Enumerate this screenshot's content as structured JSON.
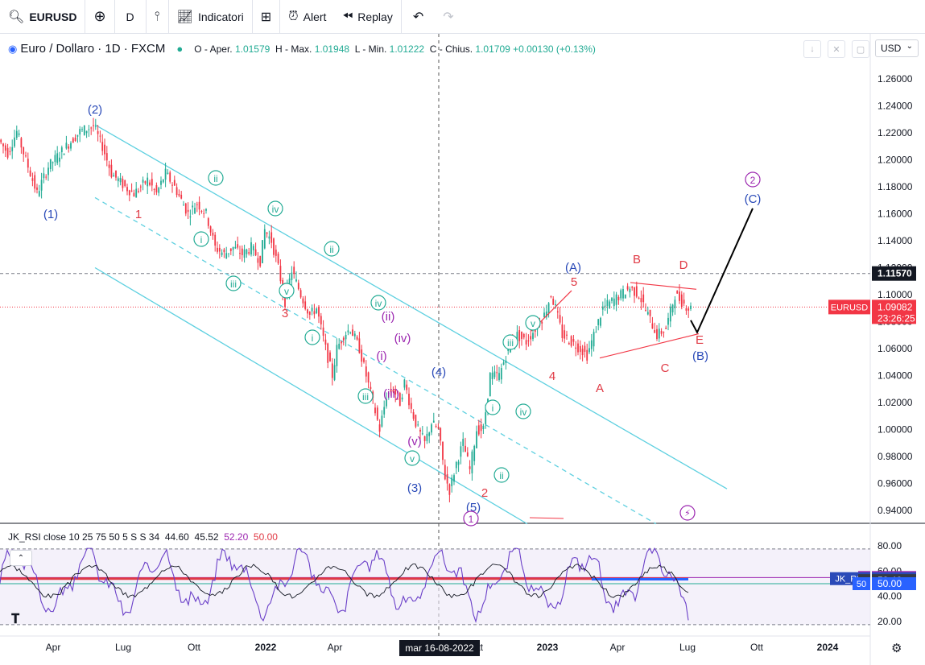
{
  "toolbar": {
    "symbol": "EURUSD",
    "interval": "D",
    "indicators_label": "Indicatori",
    "alert_label": "Alert",
    "replay_label": "Replay"
  },
  "legend": {
    "title": "Euro / Dollaro · 1D · FXCM",
    "o_label": "O - Aper.",
    "o_val": "1.01579",
    "h_label": "H - Max.",
    "h_val": "1.01948",
    "l_label": "L - Min.",
    "l_val": "1.01222",
    "c_label": "C - Chius.",
    "c_val": "1.01709",
    "change": "+0.00130 (+0.13%)"
  },
  "currency": "USD",
  "colors": {
    "up": "#22ab94",
    "down": "#f23645",
    "channel": "#5ed0e0",
    "blue": "#2962ff",
    "wave_red": "#e03a45",
    "wave_blue": "#2a4ab8",
    "wave_green": "#22ab94",
    "wave_purple": "#9c27b0"
  },
  "chart_data": {
    "type": "candlestick",
    "symbol": "EURUSD",
    "timeframe": "1D",
    "ylim": [
      0.93,
      1.27
    ],
    "y_ticks": [
      "1.26000",
      "1.24000",
      "1.22000",
      "1.20000",
      "1.18000",
      "1.16000",
      "1.14000",
      "1.12000",
      "1.10000",
      "1.08000",
      "1.06000",
      "1.04000",
      "1.02000",
      "1.00000",
      "0.98000",
      "0.96000",
      "0.94000"
    ],
    "x_ticks": [
      "Apr",
      "Lug",
      "Ott",
      "2022",
      "Apr",
      "Lug",
      "Ott",
      "2023",
      "Apr",
      "Lug",
      "Ott",
      "2024"
    ],
    "crosshair_date": "mar 16-08-2022",
    "price_marks": [
      {
        "label": "",
        "value": "1.11570"
      },
      {
        "label": "EURUSD",
        "value": "1.09082",
        "timer": "23:26:25"
      }
    ],
    "price_path": [
      [
        0,
        1.215
      ],
      [
        4,
        1.205
      ],
      [
        8,
        1.221
      ],
      [
        12,
        1.2
      ],
      [
        17,
        1.175
      ],
      [
        22,
        1.195
      ],
      [
        30,
        1.21
      ],
      [
        36,
        1.221
      ],
      [
        42,
        1.225
      ],
      [
        46,
        1.21
      ],
      [
        50,
        1.19
      ],
      [
        56,
        1.18
      ],
      [
        60,
        1.175
      ],
      [
        66,
        1.185
      ],
      [
        70,
        1.175
      ],
      [
        74,
        1.19
      ],
      [
        78,
        1.18
      ],
      [
        84,
        1.16
      ],
      [
        88,
        1.168
      ],
      [
        92,
        1.16
      ],
      [
        96,
        1.135
      ],
      [
        100,
        1.13
      ],
      [
        104,
        1.135
      ],
      [
        108,
        1.13
      ],
      [
        112,
        1.135
      ],
      [
        116,
        1.125
      ],
      [
        118,
        1.148
      ],
      [
        121,
        1.14
      ],
      [
        124,
        1.12
      ],
      [
        127,
        1.095
      ],
      [
        130,
        1.118
      ],
      [
        134,
        1.1
      ],
      [
        138,
        1.085
      ],
      [
        141,
        1.09
      ],
      [
        145,
        1.06
      ],
      [
        148,
        1.04
      ],
      [
        150,
        1.06
      ],
      [
        153,
        1.07
      ],
      [
        156,
        1.075
      ],
      [
        160,
        1.06
      ],
      [
        163,
        1.04
      ],
      [
        166,
        1.02
      ],
      [
        169,
        1.0
      ],
      [
        172,
        1.025
      ],
      [
        175,
        1.03
      ],
      [
        178,
        1.02
      ],
      [
        180,
        1.035
      ],
      [
        183,
        1.015
      ],
      [
        186,
        1.0
      ],
      [
        189,
        0.99
      ],
      [
        192,
        1.005
      ],
      [
        195,
        1.0
      ],
      [
        198,
        0.965
      ],
      [
        200,
        0.955
      ],
      [
        203,
        0.975
      ],
      [
        206,
        0.99
      ],
      [
        209,
        0.97
      ],
      [
        212,
        1.0
      ],
      [
        215,
        1.0
      ],
      [
        218,
        1.04
      ],
      [
        222,
        1.04
      ],
      [
        226,
        1.06
      ],
      [
        230,
        1.07
      ],
      [
        234,
        1.065
      ],
      [
        238,
        1.075
      ],
      [
        242,
        1.085
      ],
      [
        245,
        1.1
      ],
      [
        247,
        1.09
      ],
      [
        250,
        1.07
      ],
      [
        254,
        1.065
      ],
      [
        258,
        1.06
      ],
      [
        261,
        1.055
      ],
      [
        264,
        1.07
      ],
      [
        268,
        1.09
      ],
      [
        272,
        1.095
      ],
      [
        276,
        1.1
      ],
      [
        280,
        1.105
      ],
      [
        284,
        1.1
      ],
      [
        288,
        1.085
      ],
      [
        292,
        1.07
      ],
      [
        296,
        1.075
      ],
      [
        300,
        1.1
      ],
      [
        303,
        1.095
      ],
      [
        306,
        1.09
      ]
    ],
    "annotations": [
      {
        "text": "(1)",
        "color": "blue"
      },
      {
        "text": "(2)",
        "color": "blue"
      },
      {
        "text": "(3)",
        "color": "blue"
      },
      {
        "text": "(4)",
        "color": "blue"
      },
      {
        "text": "(5)",
        "color": "blue"
      },
      {
        "text": "(A)",
        "color": "blue"
      },
      {
        "text": "(B)",
        "color": "blue"
      },
      {
        "text": "(C)",
        "color": "blue"
      },
      {
        "text": "1",
        "color": "red"
      },
      {
        "text": "2",
        "color": "red"
      },
      {
        "text": "3",
        "color": "red"
      },
      {
        "text": "4",
        "color": "red"
      },
      {
        "text": "5",
        "color": "red"
      },
      {
        "text": "A",
        "color": "red"
      },
      {
        "text": "B",
        "color": "red"
      },
      {
        "text": "C",
        "color": "red"
      },
      {
        "text": "D",
        "color": "red"
      },
      {
        "text": "E",
        "color": "red"
      },
      {
        "text": "i",
        "color": "green"
      },
      {
        "text": "ii",
        "color": "green"
      },
      {
        "text": "iii",
        "color": "green"
      },
      {
        "text": "iv",
        "color": "green"
      },
      {
        "text": "v",
        "color": "green"
      },
      {
        "text": "(i)",
        "color": "purple"
      },
      {
        "text": "(ii)",
        "color": "purple"
      },
      {
        "text": "(iii)",
        "color": "purple"
      },
      {
        "text": "(iv)",
        "color": "purple"
      },
      {
        "text": "(v)",
        "color": "purple"
      },
      {
        "text": "1",
        "color": "purple"
      },
      {
        "text": "2",
        "color": "purple"
      }
    ]
  },
  "rsi": {
    "label": "JK_RSI",
    "params": "close 10 25 75 50 5 S S 34",
    "values": [
      "44.60",
      "45.52",
      "52.20",
      "50.00"
    ],
    "ylim": [
      15,
      85
    ],
    "y_ticks": [
      "80.00",
      "60.00",
      "40.00",
      "20.00"
    ],
    "marks": [
      {
        "tag": "S",
        "value": "54.89",
        "color": "#9c27b0"
      },
      {
        "tag": "JK_RSI",
        "value": "54.00",
        "color": "#2a4ab8"
      },
      {
        "tag": "E",
        "value": "52.46",
        "color": "#363a45"
      },
      {
        "tag": "50",
        "value": "50.00",
        "color": "#2962ff"
      }
    ]
  }
}
